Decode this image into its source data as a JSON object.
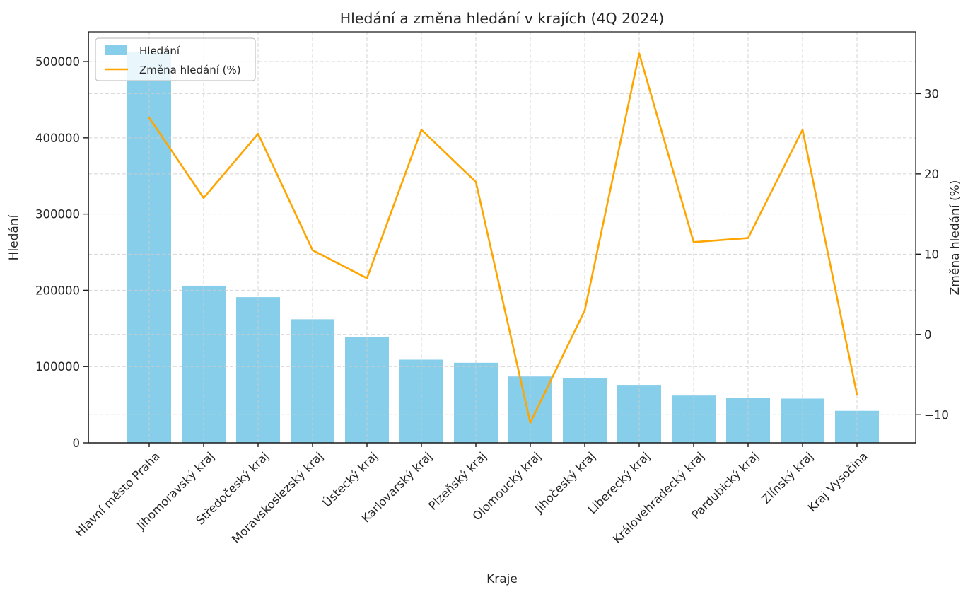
{
  "chart_data": {
    "type": "bar+line",
    "title": "Hledání a změna hledání v krajích (4Q 2024)",
    "xlabel": "Kraje",
    "ylabel_left": "Hledání",
    "ylabel_right": "Změna hledání (%)",
    "categories": [
      "Hlavní město Praha",
      "Jihomoravský kraj",
      "Středočeský kraj",
      "Moravskoslezský kraj",
      "Ústecký kraj",
      "Karlovarský kraj",
      "Plzeňský kraj",
      "Olomoucký kraj",
      "Jihočeský kraj",
      "Liberecký kraj",
      "Královéhradecký kraj",
      "Pardubický kraj",
      "Zlínský kraj",
      "Kraj Vysočina"
    ],
    "series": [
      {
        "name": "Hledání",
        "type": "bar",
        "axis": "left",
        "color": "#87CEEB",
        "values": [
          513000,
          206000,
          191000,
          162000,
          139000,
          109000,
          105000,
          87000,
          85000,
          76000,
          62000,
          59000,
          58000,
          42000
        ]
      },
      {
        "name": "Změna hledání (%)",
        "type": "line",
        "axis": "right",
        "color": "#FFA500",
        "values": [
          27,
          17,
          25,
          10.5,
          7,
          25.5,
          19,
          -11,
          3,
          35,
          11.5,
          12,
          25.5,
          -7.5
        ]
      }
    ],
    "left_ticks": [
      0,
      100000,
      200000,
      300000,
      400000,
      500000
    ],
    "right_ticks": [
      -10,
      0,
      10,
      20,
      30
    ],
    "ylim_left": [
      0,
      539000
    ],
    "ylim_right": [
      -13.5,
      37.7
    ],
    "grid": true,
    "grid_style": "dashed",
    "legend_position": "upper left"
  },
  "legend": {
    "items": [
      {
        "label": "Hledání",
        "swatch": "bar-swatch",
        "color": "#87CEEB"
      },
      {
        "label": "Změna hledání (%)",
        "swatch": "line-swatch",
        "color": "#FFA500"
      }
    ]
  },
  "colors": {
    "bar": "#87CEEB",
    "line": "#FFA500",
    "grid": "#cccccc",
    "spine": "#1a1a1a",
    "text": "#262626",
    "legend_border": "#b5b5b5",
    "background": "#ffffff"
  }
}
